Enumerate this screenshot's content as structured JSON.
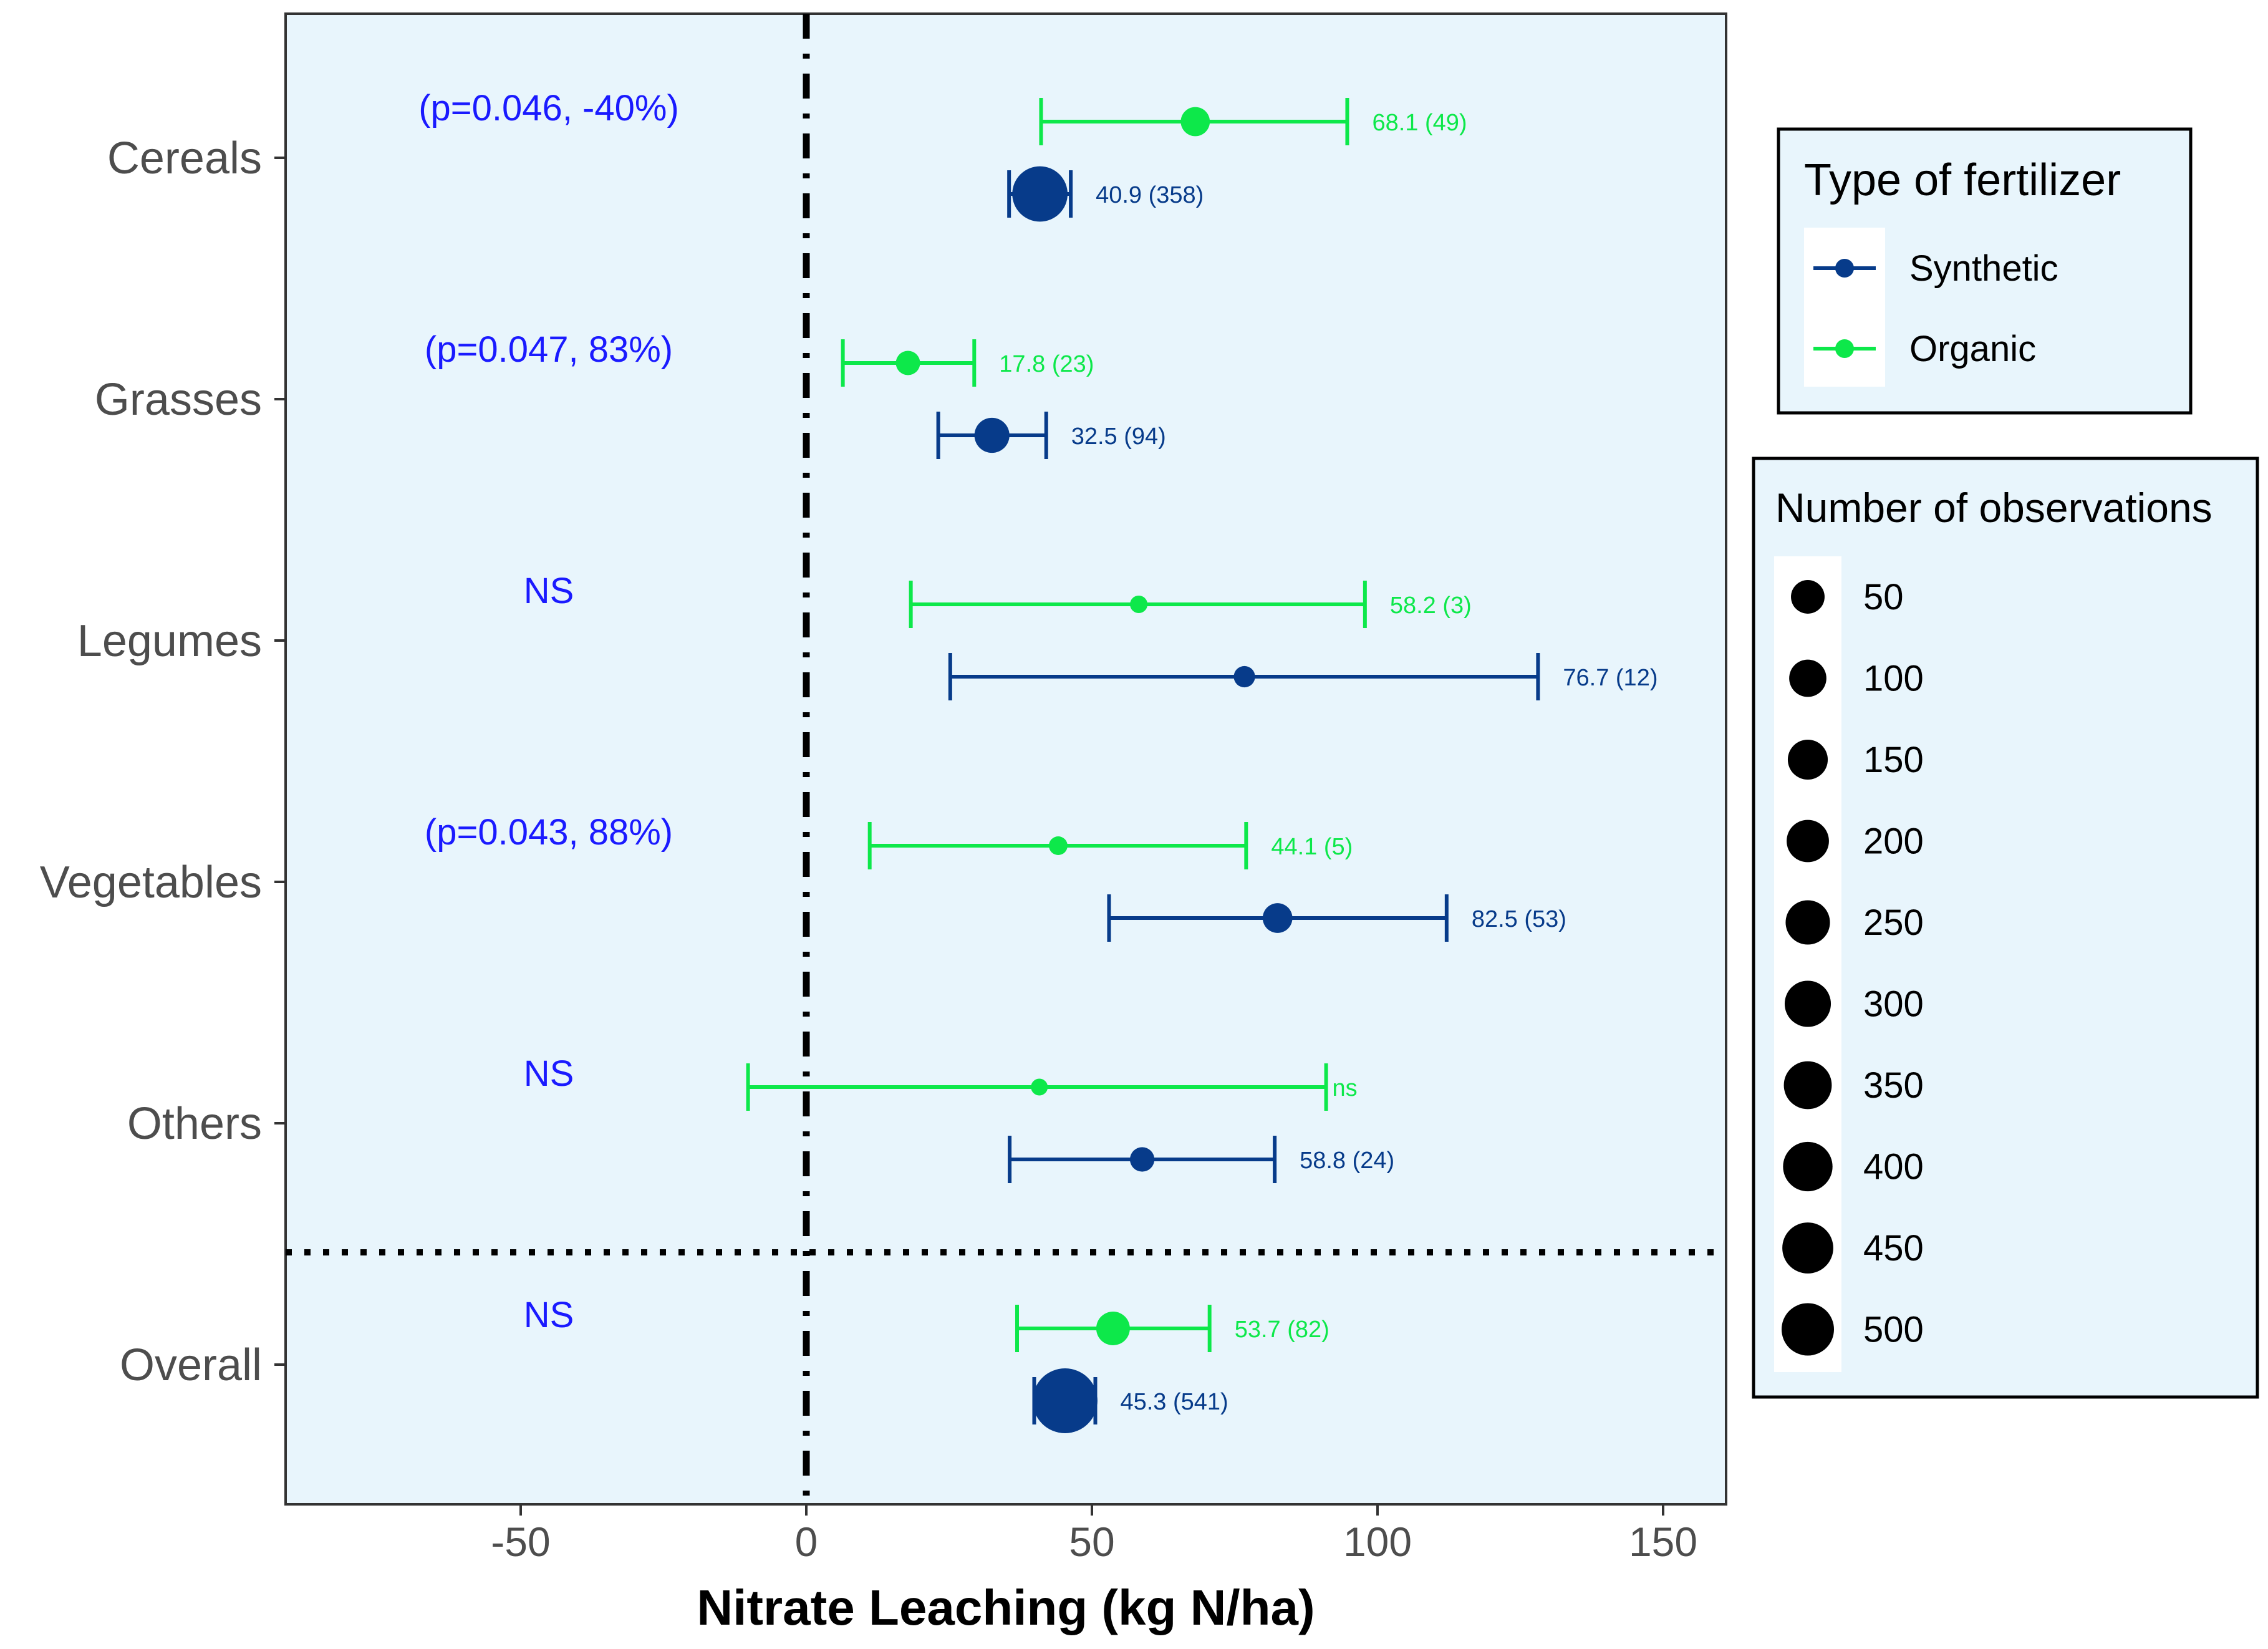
{
  "chart_data": {
    "type": "scatter",
    "subtype": "forest-plot",
    "xlabel": "Nitrate Leaching (kg N/ha)",
    "xlim": [
      -90,
      161
    ],
    "x_ticks": [
      {
        "value": -50,
        "label": "-50"
      },
      {
        "value": 0,
        "label": "0"
      },
      {
        "value": 50,
        "label": "50"
      },
      {
        "value": 100,
        "label": "100"
      },
      {
        "value": 150,
        "label": "150"
      }
    ],
    "categories": [
      "Cereals",
      "Grasses",
      "Legumes",
      "Vegetables",
      "Others",
      "Overall"
    ],
    "annotations": [
      "(p=0.046, -40%)",
      "(p=0.047, 83%)",
      "NS",
      "(p=0.043, 88%)",
      "NS",
      "NS"
    ],
    "annotation_color": "#1a1aff",
    "reference_line": {
      "x": 0,
      "style": "dash-dot"
    },
    "separator": "dotted line between Others and Overall",
    "series": [
      {
        "name": "Synthetic",
        "color": "#073b8a",
        "points": [
          {
            "category": "Cereals",
            "mean": 40.9,
            "low": 35.5,
            "high": 46.3,
            "n": 358,
            "label": "40.9 (358)"
          },
          {
            "category": "Grasses",
            "mean": 32.5,
            "low": 23.1,
            "high": 42.0,
            "n": 94,
            "label": "32.5 (94)"
          },
          {
            "category": "Legumes",
            "mean": 76.7,
            "low": 25.2,
            "high": 128.1,
            "n": 12,
            "label": "76.7 (12)"
          },
          {
            "category": "Vegetables",
            "mean": 82.5,
            "low": 53.0,
            "high": 112.1,
            "n": 53,
            "label": "82.5 (53)"
          },
          {
            "category": "Others",
            "mean": 58.8,
            "low": 35.6,
            "high": 82.0,
            "n": 24,
            "label": "58.8 (24)"
          },
          {
            "category": "Overall",
            "mean": 45.3,
            "low": 39.9,
            "high": 50.6,
            "n": 541,
            "label": "45.3 (541)"
          }
        ]
      },
      {
        "name": "Organic",
        "color": "#0de84a",
        "points": [
          {
            "category": "Cereals",
            "mean": 68.1,
            "low": 41.1,
            "high": 94.7,
            "n": 49,
            "label": "68.1 (49)"
          },
          {
            "category": "Grasses",
            "mean": 17.8,
            "low": 6.4,
            "high": 29.4,
            "n": 23,
            "label": "17.8 (23)"
          },
          {
            "category": "Legumes",
            "mean": 58.2,
            "low": 18.3,
            "high": 97.8,
            "n": 3,
            "label": "58.2 (3)"
          },
          {
            "category": "Vegetables",
            "mean": 44.1,
            "low": 11.1,
            "high": 77.0,
            "n": 5,
            "label": "44.1 (5)"
          },
          {
            "category": "Others",
            "mean": 40.8,
            "low": -10.2,
            "high": 91.0,
            "n": 2,
            "label": "ns"
          },
          {
            "category": "Overall",
            "mean": 53.7,
            "low": 36.9,
            "high": 70.6,
            "n": 82,
            "label": "53.7 (82)"
          }
        ]
      }
    ],
    "legend_fertilizer": {
      "title": "Type of fertilizer",
      "items": [
        {
          "label": "Synthetic",
          "color": "#073b8a"
        },
        {
          "label": "Organic",
          "color": "#0de84a"
        }
      ]
    },
    "legend_size": {
      "title": "Number of observations",
      "items": [
        {
          "label": "50",
          "value": 50
        },
        {
          "label": "100",
          "value": 100
        },
        {
          "label": "150",
          "value": 150
        },
        {
          "label": "200",
          "value": 200
        },
        {
          "label": "250",
          "value": 250
        },
        {
          "label": "300",
          "value": 300
        },
        {
          "label": "350",
          "value": 350
        },
        {
          "label": "400",
          "value": 400
        },
        {
          "label": "450",
          "value": 450
        },
        {
          "label": "500",
          "value": 500
        }
      ]
    }
  }
}
